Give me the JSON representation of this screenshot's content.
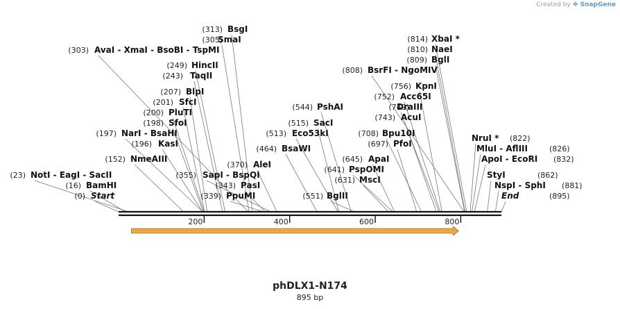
{
  "credit": {
    "prefix": "Created by",
    "brand": "SnapGene"
  },
  "plasmid": {
    "name": "phDLX1-N174",
    "length_label": "895 bp",
    "length": 895
  },
  "ticks": [
    {
      "pos": 200,
      "label": "200"
    },
    {
      "pos": 400,
      "label": "400"
    },
    {
      "pos": 600,
      "label": "600"
    },
    {
      "pos": 800,
      "label": "800"
    }
  ],
  "feature": {
    "start": 30,
    "end": 795,
    "color": "#f0a830"
  },
  "sites": [
    {
      "names": [
        "NotI",
        "EagI",
        "SacII"
      ],
      "pos": "(23)",
      "cut": 23
    },
    {
      "names": [
        "BamHI"
      ],
      "pos": "(16)",
      "cut": 16
    },
    {
      "names": [
        "Start"
      ],
      "pos": "(0)",
      "cut": 0,
      "italic": true
    },
    {
      "names": [
        "NmeAIII"
      ],
      "pos": "(152)",
      "cut": 152
    },
    {
      "names": [
        "KasI"
      ],
      "pos": "(196)",
      "cut": 196
    },
    {
      "names": [
        "NarI",
        "BsaHI"
      ],
      "pos": "(197)",
      "cut": 197
    },
    {
      "names": [
        "SfoI"
      ],
      "pos": "(198)",
      "cut": 198
    },
    {
      "names": [
        "PluTI"
      ],
      "pos": "(200)",
      "cut": 200
    },
    {
      "names": [
        "SfcI"
      ],
      "pos": "(201)",
      "cut": 201
    },
    {
      "names": [
        "BlpI"
      ],
      "pos": "(207)",
      "cut": 207
    },
    {
      "names": [
        "TaqII"
      ],
      "pos": "(243)",
      "cut": 243
    },
    {
      "names": [
        "HincII"
      ],
      "pos": "(249)",
      "cut": 249
    },
    {
      "names": [
        "AvaI",
        "XmaI",
        "BsoBI",
        "TspMI"
      ],
      "pos": "(303)",
      "cut": 303
    },
    {
      "names": [
        "SmaI"
      ],
      "pos": "(305)",
      "cut": 305
    },
    {
      "names": [
        "BsgI"
      ],
      "pos": "(313)",
      "cut": 313
    },
    {
      "names": [
        "SapI",
        "BspQI"
      ],
      "pos": "(355)",
      "cut": 355
    },
    {
      "names": [
        "PpuMI"
      ],
      "pos": "(339)",
      "cut": 339
    },
    {
      "names": [
        "PasI"
      ],
      "pos": "(343)",
      "cut": 343
    },
    {
      "names": [
        "AleI"
      ],
      "pos": "(370)",
      "cut": 370
    },
    {
      "names": [
        "BsaWI"
      ],
      "pos": "(464)",
      "cut": 464
    },
    {
      "names": [
        "Eco53kI"
      ],
      "pos": "(513)",
      "cut": 513
    },
    {
      "names": [
        "SacI"
      ],
      "pos": "(515)",
      "cut": 515
    },
    {
      "names": [
        "PshAI"
      ],
      "pos": "(544)",
      "cut": 544
    },
    {
      "names": [
        "BglII"
      ],
      "pos": "(551)",
      "cut": 551
    },
    {
      "names": [
        "MscI"
      ],
      "pos": "(631)",
      "cut": 631
    },
    {
      "names": [
        "PspOMI"
      ],
      "pos": "(641)",
      "cut": 641
    },
    {
      "names": [
        "ApaI"
      ],
      "pos": "(645)",
      "cut": 645
    },
    {
      "names": [
        "PfoI"
      ],
      "pos": "(697)",
      "cut": 697
    },
    {
      "names": [
        "Bpu10I"
      ],
      "pos": "(708)",
      "cut": 708
    },
    {
      "names": [
        "AcuI"
      ],
      "pos": "(743)",
      "cut": 743
    },
    {
      "names": [
        "DraIII"
      ],
      "pos": "(749)",
      "cut": 749
    },
    {
      "names": [
        "Acc65I"
      ],
      "pos": "(752)",
      "cut": 752
    },
    {
      "names": [
        "KpnI"
      ],
      "pos": "(756)",
      "cut": 756
    },
    {
      "names": [
        "BsrFI",
        "NgoMIV"
      ],
      "pos": "(808)",
      "cut": 808
    },
    {
      "names": [
        "BglI"
      ],
      "pos": "(809)",
      "cut": 809
    },
    {
      "names": [
        "NaeI"
      ],
      "pos": "(810)",
      "cut": 810
    },
    {
      "names": [
        "XbaI *"
      ],
      "pos": "(814)",
      "cut": 814
    },
    {
      "names": [
        "NruI *"
      ],
      "pos": "(822)",
      "cut": 822
    },
    {
      "names": [
        "MluI",
        "AflIII"
      ],
      "pos": "(826)",
      "cut": 826
    },
    {
      "names": [
        "ApoI",
        "EcoRI"
      ],
      "pos": "(832)",
      "cut": 832
    },
    {
      "names": [
        "StyI"
      ],
      "pos": "(862)",
      "cut": 862
    },
    {
      "names": [
        "NspI",
        "SphI"
      ],
      "pos": "(881)",
      "cut": 881
    },
    {
      "names": [
        "End"
      ],
      "pos": "(895)",
      "cut": 895,
      "italic": true
    }
  ]
}
